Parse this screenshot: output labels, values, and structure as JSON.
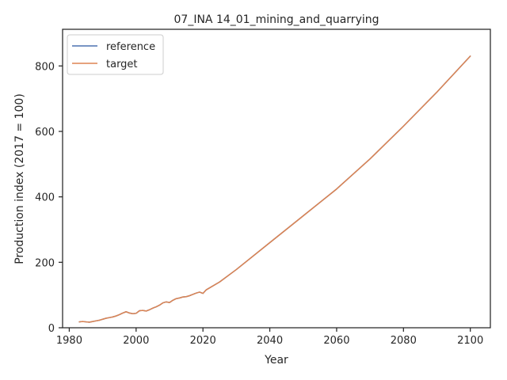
{
  "chart_data": {
    "type": "line",
    "title": "07_INA 14_01_mining_and_quarrying",
    "xlabel": "Year",
    "ylabel": "Production index (2017 = 100)",
    "xlim": [
      1978,
      2106
    ],
    "ylim": [
      0,
      912
    ],
    "xticks": [
      1980,
      2000,
      2020,
      2040,
      2060,
      2080,
      2100
    ],
    "yticks": [
      0,
      200,
      400,
      600,
      800
    ],
    "grid": false,
    "legend_position": "top-left",
    "series": [
      {
        "name": "reference",
        "color": "#4c72b0",
        "x": [
          1983,
          1984,
          1985,
          1986,
          1987,
          1988,
          1989,
          1990,
          1991,
          1992,
          1993,
          1994,
          1995,
          1996,
          1997,
          1998,
          1999,
          2000,
          2001,
          2002,
          2003,
          2004,
          2005,
          2006,
          2007,
          2008,
          2009,
          2010,
          2011,
          2012,
          2013,
          2014,
          2015,
          2016,
          2017,
          2018,
          2019,
          2020,
          2021,
          2025,
          2030,
          2040,
          2050,
          2060,
          2070,
          2080,
          2090,
          2100
        ],
        "y": [
          18,
          19,
          18,
          17,
          19,
          21,
          23,
          26,
          29,
          31,
          33,
          36,
          40,
          45,
          49,
          45,
          43,
          44,
          52,
          53,
          51,
          55,
          60,
          64,
          69,
          76,
          79,
          77,
          84,
          89,
          91,
          94,
          95,
          98,
          102,
          106,
          109,
          105,
          116,
          140,
          178,
          260,
          342,
          424,
          516,
          616,
          720,
          830
        ]
      },
      {
        "name": "target",
        "color": "#dd8452",
        "x": [
          1983,
          1984,
          1985,
          1986,
          1987,
          1988,
          1989,
          1990,
          1991,
          1992,
          1993,
          1994,
          1995,
          1996,
          1997,
          1998,
          1999,
          2000,
          2001,
          2002,
          2003,
          2004,
          2005,
          2006,
          2007,
          2008,
          2009,
          2010,
          2011,
          2012,
          2013,
          2014,
          2015,
          2016,
          2017,
          2018,
          2019,
          2020,
          2021,
          2025,
          2030,
          2040,
          2050,
          2060,
          2070,
          2080,
          2090,
          2100
        ],
        "y": [
          18,
          19,
          18,
          17,
          19,
          21,
          23,
          26,
          29,
          31,
          33,
          36,
          40,
          45,
          49,
          45,
          43,
          44,
          52,
          53,
          51,
          55,
          60,
          64,
          69,
          76,
          79,
          77,
          84,
          89,
          91,
          94,
          95,
          98,
          102,
          106,
          109,
          105,
          116,
          140,
          178,
          260,
          342,
          424,
          516,
          616,
          720,
          830
        ]
      }
    ]
  }
}
